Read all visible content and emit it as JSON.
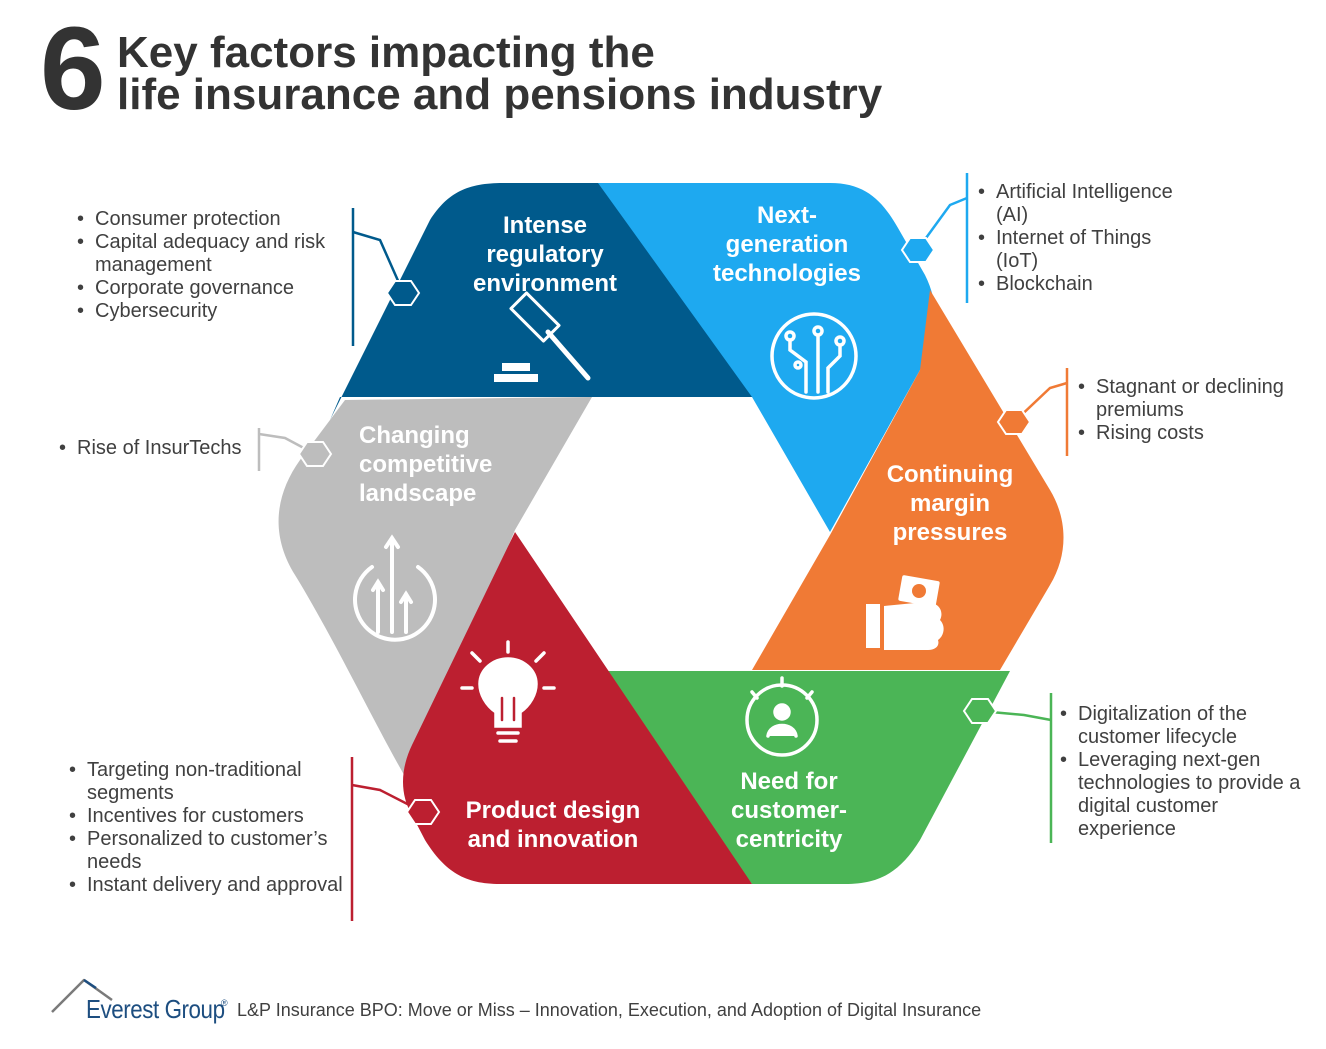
{
  "title": {
    "number": "6",
    "line1": "Key factors impacting the",
    "line2": "life insurance and pensions industry"
  },
  "segments": {
    "regulatory": {
      "color": "#005a8c",
      "icon": "gavel-icon",
      "label_lines": [
        "Intense",
        "regulatory",
        "environment"
      ],
      "bullets": [
        "Consumer protection",
        "Capital adequacy and risk management",
        "Corporate governance",
        "Cybersecurity"
      ]
    },
    "technology": {
      "color": "#1ea9f0",
      "icon": "circuit-icon",
      "label_lines": [
        "Next-",
        "generation",
        "technologies"
      ],
      "bullets": [
        "Artificial Intelligence (AI)",
        "Internet of Things (IoT)",
        "Blockchain"
      ]
    },
    "margin": {
      "color": "#f07a35",
      "icon": "hand-money-icon",
      "label_lines": [
        "Continuing",
        "margin",
        "pressures"
      ],
      "bullets": [
        "Stagnant or declining premiums",
        "Rising costs"
      ]
    },
    "customer": {
      "color": "#4bb556",
      "icon": "customer-target-icon",
      "label_lines": [
        "Need for",
        "customer-",
        "centricity"
      ],
      "bullets": [
        "Digitalization of the customer lifecycle",
        "Leveraging next-gen technologies to provide a digital customer experience"
      ]
    },
    "product": {
      "color": "#bc1f30",
      "icon": "lightbulb-icon",
      "label_lines": [
        "Product design",
        "and innovation"
      ],
      "bullets": [
        "Targeting non-traditional segments",
        "Incentives for customers",
        "Personalized to customer’s needs",
        "Instant delivery and approval"
      ]
    },
    "competition": {
      "color": "#bdbdbd",
      "icon": "growth-chart-icon",
      "label_lines": [
        "Changing",
        "competitive",
        "landscape"
      ],
      "bullets": [
        "Rise of InsurTechs"
      ]
    }
  },
  "footer": {
    "brand": "Everest Group",
    "registered": "®",
    "caption": "L&P Insurance BPO: Move or Miss – Innovation, Execution, and Adoption of Digital Insurance"
  }
}
